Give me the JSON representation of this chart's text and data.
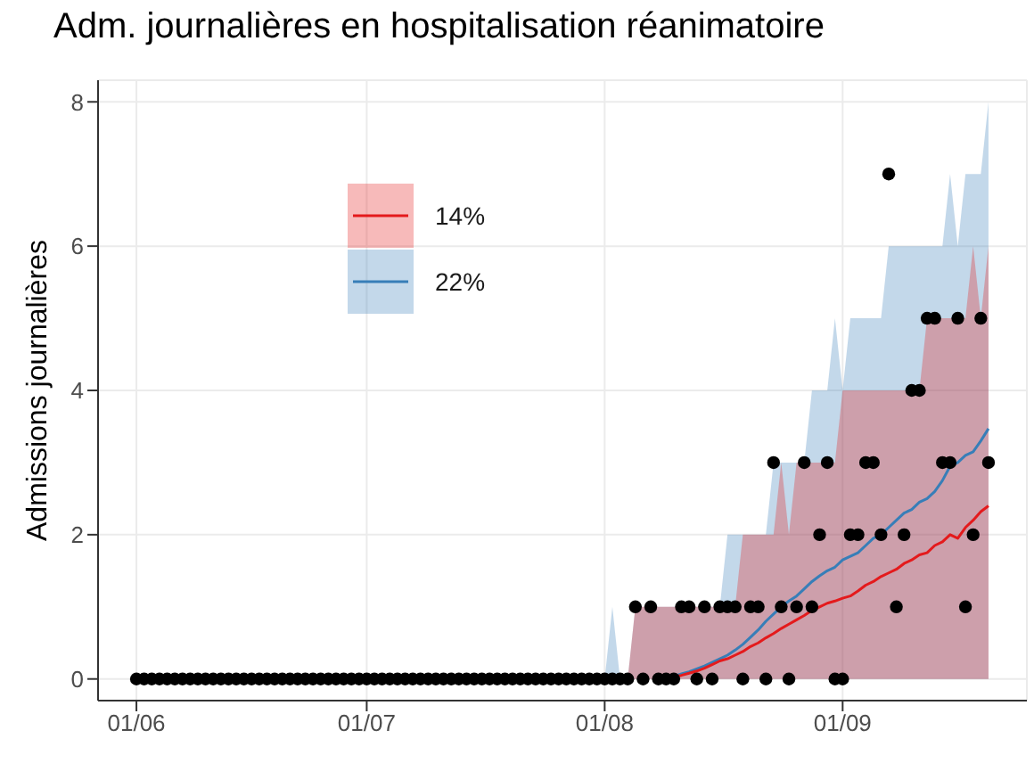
{
  "chart_data": {
    "type": "scatter",
    "title": "Adm. journalières en hospitalisation réanimatoire",
    "ylabel": "Admissions journalières",
    "x": [
      "--06-01",
      "--06-02",
      "--06-03",
      "--06-04",
      "--06-05",
      "--06-06",
      "--06-07",
      "--06-08",
      "--06-09",
      "--06-10",
      "--06-11",
      "--06-12",
      "--06-13",
      "--06-14",
      "--06-15",
      "--06-16",
      "--06-17",
      "--06-18",
      "--06-19",
      "--06-20",
      "--06-21",
      "--06-22",
      "--06-23",
      "--06-24",
      "--06-25",
      "--06-26",
      "--06-27",
      "--06-28",
      "--06-29",
      "--06-30",
      "--07-01",
      "--07-02",
      "--07-03",
      "--07-04",
      "--07-05",
      "--07-06",
      "--07-07",
      "--07-08",
      "--07-09",
      "--07-10",
      "--07-11",
      "--07-12",
      "--07-13",
      "--07-14",
      "--07-15",
      "--07-16",
      "--07-17",
      "--07-18",
      "--07-19",
      "--07-20",
      "--07-21",
      "--07-22",
      "--07-23",
      "--07-24",
      "--07-25",
      "--07-26",
      "--07-27",
      "--07-28",
      "--07-29",
      "--07-30",
      "--07-31",
      "--08-01",
      "--08-02",
      "--08-03",
      "--08-04",
      "--08-05",
      "--08-06",
      "--08-07",
      "--08-08",
      "--08-09",
      "--08-10",
      "--08-11",
      "--08-12",
      "--08-13",
      "--08-14",
      "--08-15",
      "--08-16",
      "--08-17",
      "--08-18",
      "--08-19",
      "--08-20",
      "--08-21",
      "--08-22",
      "--08-23",
      "--08-24",
      "--08-25",
      "--08-26",
      "--08-27",
      "--08-28",
      "--08-29",
      "--08-30",
      "--08-31",
      "--09-01",
      "--09-02",
      "--09-03",
      "--09-04",
      "--09-05",
      "--09-06",
      "--09-07",
      "--09-08",
      "--09-09",
      "--09-10",
      "--09-11",
      "--09-12",
      "--09-13",
      "--09-14",
      "--09-15",
      "--09-16",
      "--09-17",
      "--09-18",
      "--09-19",
      "--09-20"
    ],
    "series": [
      {
        "type": "line",
        "name": "22%",
        "color": "#377eb8",
        "x": [
          "--07-31",
          "--08-01",
          "--08-02",
          "--08-03",
          "--08-04",
          "--08-05",
          "--08-06",
          "--08-07",
          "--08-08",
          "--08-09",
          "--08-10",
          "--08-11",
          "--08-12",
          "--08-13",
          "--08-14",
          "--08-15",
          "--08-16",
          "--08-17",
          "--08-18",
          "--08-19",
          "--08-20",
          "--08-21",
          "--08-22",
          "--08-23",
          "--08-24",
          "--08-25",
          "--08-26",
          "--08-27",
          "--08-28",
          "--08-29",
          "--08-30",
          "--08-31",
          "--09-01",
          "--09-02",
          "--09-03",
          "--09-04",
          "--09-05",
          "--09-06",
          "--09-07",
          "--09-08",
          "--09-09",
          "--09-10",
          "--09-11",
          "--09-12",
          "--09-13",
          "--09-14",
          "--09-15",
          "--09-16",
          "--09-17",
          "--09-18",
          "--09-19",
          "--09-20"
        ],
        "values": [
          null,
          null,
          null,
          null,
          null,
          null,
          null,
          null,
          null,
          0.02,
          0.04,
          0.07,
          0.1,
          0.14,
          0.18,
          0.23,
          0.28,
          0.33,
          0.4,
          0.48,
          0.58,
          0.68,
          0.8,
          0.9,
          1.0,
          1.08,
          1.15,
          1.25,
          1.35,
          1.43,
          1.5,
          1.55,
          1.65,
          1.7,
          1.75,
          1.85,
          1.95,
          2.0,
          2.1,
          2.2,
          2.3,
          2.35,
          2.45,
          2.5,
          2.6,
          2.75,
          2.95,
          3.0,
          3.1,
          3.15,
          3.3,
          3.47
        ],
        "lower": [
          0,
          0,
          0,
          0,
          0,
          0,
          0,
          0,
          0,
          0,
          0,
          0,
          0,
          0,
          0,
          0,
          0,
          0,
          0,
          0,
          0,
          0,
          0,
          0,
          0,
          0,
          0,
          0,
          0,
          0,
          0,
          0,
          0,
          0,
          0,
          0,
          0,
          0,
          0,
          0,
          0,
          0,
          0,
          0,
          0,
          0,
          0,
          0,
          0,
          0,
          0,
          0
        ],
        "upper": [
          0,
          0,
          1,
          0,
          0,
          1,
          1,
          1,
          1,
          1,
          1,
          1,
          1,
          1,
          1,
          1,
          1,
          2,
          2,
          2,
          2,
          2,
          2,
          3,
          3,
          3,
          3,
          3,
          4,
          4,
          4,
          5,
          4,
          5,
          5,
          5,
          5,
          5,
          6,
          6,
          6,
          6,
          6,
          6,
          6,
          6,
          7,
          6,
          7,
          7,
          7,
          8
        ]
      },
      {
        "type": "line",
        "name": "14%",
        "color": "#e41a1c",
        "x": [
          "--07-31",
          "--08-01",
          "--08-02",
          "--08-03",
          "--08-04",
          "--08-05",
          "--08-06",
          "--08-07",
          "--08-08",
          "--08-09",
          "--08-10",
          "--08-11",
          "--08-12",
          "--08-13",
          "--08-14",
          "--08-15",
          "--08-16",
          "--08-17",
          "--08-18",
          "--08-19",
          "--08-20",
          "--08-21",
          "--08-22",
          "--08-23",
          "--08-24",
          "--08-25",
          "--08-26",
          "--08-27",
          "--08-28",
          "--08-29",
          "--08-30",
          "--08-31",
          "--09-01",
          "--09-02",
          "--09-03",
          "--09-04",
          "--09-05",
          "--09-06",
          "--09-07",
          "--09-08",
          "--09-09",
          "--09-10",
          "--09-11",
          "--09-12",
          "--09-13",
          "--09-14",
          "--09-15",
          "--09-16",
          "--09-17",
          "--09-18",
          "--09-19",
          "--09-20"
        ],
        "values": [
          null,
          null,
          null,
          null,
          null,
          null,
          null,
          null,
          null,
          0.02,
          0.03,
          0.05,
          0.08,
          0.11,
          0.15,
          0.2,
          0.25,
          0.28,
          0.33,
          0.38,
          0.45,
          0.5,
          0.57,
          0.63,
          0.7,
          0.76,
          0.82,
          0.88,
          0.95,
          1.0,
          1.05,
          1.08,
          1.12,
          1.15,
          1.22,
          1.3,
          1.35,
          1.42,
          1.47,
          1.52,
          1.6,
          1.65,
          1.72,
          1.75,
          1.85,
          1.9,
          2.0,
          1.95,
          2.1,
          2.2,
          2.32,
          2.4
        ],
        "lower": [
          0,
          0,
          0,
          0,
          0,
          0,
          0,
          0,
          0,
          0,
          0,
          0,
          0,
          0,
          0,
          0,
          0,
          0,
          0,
          0,
          0,
          0,
          0,
          0,
          0,
          0,
          0,
          0,
          0,
          0,
          0,
          0,
          0,
          0,
          0,
          0,
          0,
          0,
          0,
          0,
          0,
          0,
          0,
          0,
          0,
          0,
          0,
          0,
          0,
          0,
          0,
          0
        ],
        "upper": [
          0,
          0,
          0,
          0,
          0,
          1,
          1,
          1,
          1,
          1,
          1,
          1,
          1,
          1,
          1,
          1,
          1,
          1,
          1,
          2,
          2,
          2,
          2,
          2,
          3,
          2,
          3,
          3,
          3,
          3,
          3,
          3,
          4,
          4,
          4,
          4,
          4,
          4,
          4,
          4,
          4,
          4,
          4,
          5,
          5,
          5,
          5,
          5,
          5,
          6,
          5,
          6
        ]
      },
      {
        "color": "#000000",
        "marker": "circle",
        "values": [
          0,
          0,
          0,
          0,
          0,
          0,
          0,
          0,
          0,
          0,
          0,
          0,
          0,
          0,
          0,
          0,
          0,
          0,
          0,
          0,
          0,
          0,
          0,
          0,
          0,
          0,
          0,
          0,
          0,
          0,
          0,
          0,
          0,
          0,
          0,
          0,
          0,
          0,
          0,
          0,
          0,
          0,
          0,
          0,
          0,
          0,
          0,
          0,
          0,
          0,
          0,
          0,
          0,
          0,
          0,
          0,
          0,
          0,
          0,
          0,
          0,
          0,
          0,
          0,
          0,
          1,
          0,
          1,
          0,
          0,
          0,
          1,
          1,
          0,
          1,
          0,
          1,
          1,
          1,
          0,
          1,
          1,
          0,
          3,
          1,
          0,
          1,
          3,
          1,
          2,
          3,
          0,
          0,
          2,
          2,
          3,
          3,
          2,
          7,
          1,
          2,
          4,
          4,
          5,
          5,
          3,
          3,
          5,
          1,
          2,
          5,
          3
        ]
      }
    ],
    "xlim": [
      "--05-27",
      "--09-25"
    ],
    "xticks": [
      {
        "value": "--06-01",
        "label": "01/06"
      },
      {
        "value": "--07-01",
        "label": "01/07"
      },
      {
        "value": "--08-01",
        "label": "01/08"
      },
      {
        "value": "--09-01",
        "label": "01/09"
      }
    ],
    "ylim": [
      -0.3,
      8.3
    ],
    "yticks": [
      0,
      2,
      4,
      6,
      8
    ],
    "grid": true,
    "legend": "top left"
  }
}
